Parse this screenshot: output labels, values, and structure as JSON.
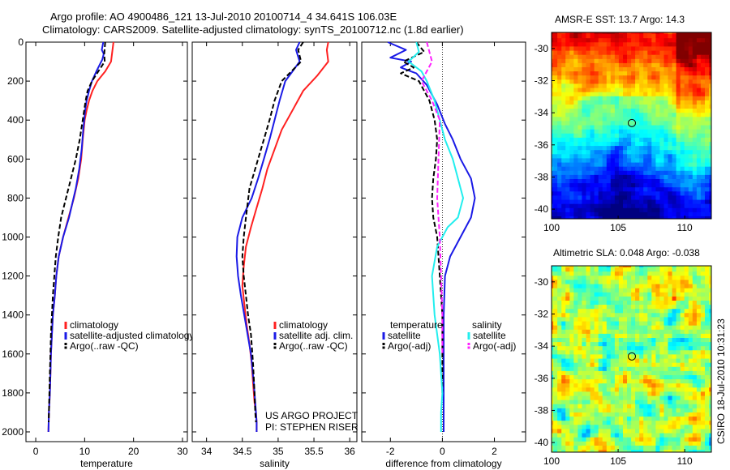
{
  "header": {
    "line1": "Argo profile: AO 4900486_121 13-Jul-2010 20100714_4 34.641S 106.03E",
    "line2": "Climatology: CARS2009. Satellite-adjusted climatology: synTS_20100712.nc (1.8d earlier)"
  },
  "watermark": "CSIRO 18-Jul-2010 10:31:23",
  "colors": {
    "red": "#ff2020",
    "blue": "#1a1ae6",
    "black": "#000000",
    "cyan": "#22eeee",
    "magenta": "#ff22ff"
  },
  "chart_data": [
    {
      "type": "line",
      "name": "temperature-profile",
      "xlabel": "temperature",
      "xlim": [
        -2,
        31
      ],
      "ylim": [
        2050,
        0
      ],
      "xticks": [
        "0",
        "10",
        "20",
        "30"
      ],
      "xtick_values": [
        0,
        10,
        20,
        30
      ],
      "yticks": [
        "0",
        "200",
        "400",
        "600",
        "800",
        "1000",
        "1200",
        "1400",
        "1600",
        "1800",
        "2000"
      ],
      "ytick_values": [
        0,
        200,
        400,
        600,
        800,
        1000,
        1200,
        1400,
        1600,
        1800,
        2000
      ],
      "legend": [
        "climatology",
        "satellite-adjusted climatology",
        "Argo(..raw -QC)"
      ],
      "series": [
        {
          "name": "climatology",
          "color": "red",
          "dash": false,
          "x": [
            15.9,
            15.6,
            15.4,
            14.2,
            12.6,
            11.6,
            10.9,
            10.4,
            10.0,
            9.8,
            9.6,
            9.3,
            8.7,
            7.8,
            6.7,
            5.6,
            4.7,
            4.2,
            3.9,
            3.5,
            3.3,
            3.1,
            3.0,
            2.9,
            2.8,
            2.7,
            2.65,
            2.6
          ],
          "y": [
            0,
            60,
            100,
            150,
            200,
            250,
            300,
            350,
            400,
            450,
            500,
            600,
            700,
            800,
            900,
            1000,
            1100,
            1200,
            1300,
            1400,
            1500,
            1600,
            1700,
            1800,
            1850,
            1900,
            1950,
            2000
          ]
        },
        {
          "name": "satellite-adjusted climatology",
          "color": "blue",
          "dash": false,
          "x": [
            13.8,
            13.5,
            13.9,
            13.6,
            12.4,
            11.5,
            10.9,
            10.4,
            10.1,
            9.9,
            9.7,
            9.4,
            8.9,
            8.2,
            6.8,
            5.6,
            4.7,
            4.2,
            3.9,
            3.5,
            3.3,
            3.1,
            3.0,
            2.9,
            2.8,
            2.7,
            2.65,
            2.6
          ],
          "y": [
            0,
            40,
            60,
            90,
            150,
            200,
            250,
            300,
            350,
            400,
            450,
            550,
            650,
            750,
            900,
            1000,
            1100,
            1200,
            1300,
            1400,
            1500,
            1600,
            1700,
            1800,
            1850,
            1900,
            1950,
            2000
          ]
        },
        {
          "name": "Argo(..raw -QC)",
          "color": "black",
          "dash": true,
          "x": [
            14.2,
            14.1,
            14.0,
            14.1,
            12.8,
            11.5,
            10.6,
            10.2,
            9.9,
            9.6,
            9.3,
            9.0,
            8.2,
            7.2,
            6.2,
            5.2,
            4.6,
            4.1,
            3.8,
            3.5,
            3.3,
            3.1,
            3.0,
            2.9,
            2.8,
            2.75,
            2.7,
            2.65
          ],
          "y": [
            0,
            30,
            60,
            100,
            150,
            200,
            250,
            300,
            350,
            400,
            450,
            500,
            600,
            700,
            800,
            900,
            1000,
            1100,
            1200,
            1300,
            1400,
            1500,
            1600,
            1700,
            1800,
            1850,
            1900,
            1950
          ]
        }
      ]
    },
    {
      "type": "line",
      "name": "salinity-profile",
      "xlabel": "salinity",
      "xlim": [
        33.8,
        36.1
      ],
      "ylim": [
        2050,
        0
      ],
      "xticks": [
        "34",
        "34.5",
        "35",
        "35.5",
        "36"
      ],
      "xtick_values": [
        34,
        34.5,
        35,
        35.5,
        36
      ],
      "legend": [
        "climatology",
        "satellite adj. clim.",
        "Argo(..raw -QC)"
      ],
      "annotation": [
        "US ARGO PROJECT",
        "PI: STEPHEN RISER"
      ],
      "series": [
        {
          "name": "climatology",
          "color": "red",
          "dash": false,
          "x": [
            35.7,
            35.68,
            35.7,
            35.55,
            35.35,
            35.2,
            35.05,
            34.95,
            34.85,
            34.78,
            34.7,
            34.62,
            34.55,
            34.52,
            34.5,
            34.53,
            34.56,
            34.6,
            34.63,
            34.65,
            34.67,
            34.69,
            34.7,
            34.7
          ],
          "y": [
            0,
            40,
            100,
            170,
            250,
            350,
            450,
            550,
            650,
            750,
            850,
            950,
            1050,
            1150,
            1250,
            1350,
            1450,
            1550,
            1650,
            1750,
            1850,
            1900,
            1950,
            2000
          ]
        },
        {
          "name": "satellite adj. clim.",
          "color": "blue",
          "dash": false,
          "x": [
            35.3,
            35.25,
            35.3,
            35.2,
            35.1,
            35.02,
            34.95,
            34.88,
            34.8,
            34.72,
            34.63,
            34.5,
            34.43,
            34.42,
            34.44,
            34.48,
            34.55,
            34.62,
            34.66,
            34.68,
            34.7,
            34.7
          ],
          "y": [
            0,
            40,
            100,
            150,
            200,
            300,
            400,
            500,
            600,
            700,
            800,
            900,
            1000,
            1100,
            1200,
            1300,
            1450,
            1600,
            1750,
            1850,
            1950,
            2000
          ]
        },
        {
          "name": "Argo(..raw -QC)",
          "color": "black",
          "dash": true,
          "x": [
            35.35,
            35.28,
            35.32,
            35.05,
            34.95,
            34.88,
            34.8,
            34.72,
            34.6,
            34.55,
            34.52,
            34.5,
            34.52,
            34.55,
            34.58,
            34.62,
            34.65,
            34.67,
            34.68,
            34.69
          ],
          "y": [
            0,
            40,
            100,
            200,
            300,
            400,
            500,
            600,
            750,
            900,
            1000,
            1100,
            1200,
            1300,
            1400,
            1500,
            1650,
            1800,
            1900,
            1950
          ]
        }
      ]
    },
    {
      "type": "line",
      "name": "difference-profile",
      "xlabel": "difference from climatology",
      "xlim": [
        -3.1,
        3.2
      ],
      "ylim": [
        2050,
        0
      ],
      "xticks": [
        "-2",
        "0",
        "2"
      ],
      "xtick_values": [
        -2,
        0,
        2
      ],
      "zero_line": 0,
      "legend_headers": [
        "temperature",
        "salinity"
      ],
      "legend": [
        "satellite",
        "Argo(-adj)",
        "satellite",
        "Argo(-adj)"
      ],
      "series": [
        {
          "name": "temperature satellite",
          "color": "blue",
          "dash": false,
          "x": [
            -2.1,
            -1.4,
            -2.0,
            -1.2,
            -1.6,
            -1.0,
            -0.6,
            -0.2,
            0.1,
            0.4,
            0.7,
            1.1,
            1.25,
            1.1,
            0.7,
            0.3,
            0.1,
            0.05,
            0.05,
            0.05,
            0.05,
            0.05
          ],
          "y": [
            0,
            40,
            80,
            100,
            130,
            160,
            220,
            320,
            420,
            500,
            600,
            700,
            800,
            900,
            1000,
            1100,
            1200,
            1400,
            1600,
            1800,
            1900,
            2000
          ]
        },
        {
          "name": "temperature Argo(-adj)",
          "color": "black",
          "dash": true,
          "x": [
            -1.0,
            -0.7,
            -1.5,
            -1.1,
            -1.6,
            -0.9,
            -0.5,
            -0.3,
            -0.2,
            -0.25,
            -0.35,
            -0.4,
            -0.35,
            -0.2,
            -0.1,
            0.0,
            0.0,
            0.0
          ],
          "y": [
            0,
            50,
            100,
            130,
            160,
            200,
            300,
            400,
            500,
            600,
            700,
            800,
            900,
            1000,
            1200,
            1400,
            1600,
            1800
          ]
        },
        {
          "name": "salinity satellite",
          "color": "cyan",
          "dash": false,
          "x": [
            -1.0,
            -0.9,
            -1.3,
            -0.8,
            -0.6,
            -0.3,
            -0.1,
            0.1,
            0.4,
            0.8,
            0.6,
            0.2,
            -0.2,
            -0.4,
            -0.3,
            -0.1,
            0.0,
            -0.05,
            -0.05
          ],
          "y": [
            0,
            50,
            100,
            150,
            200,
            300,
            400,
            500,
            600,
            800,
            900,
            950,
            1050,
            1200,
            1400,
            1600,
            1800,
            1900,
            2000
          ]
        },
        {
          "name": "salinity Argo(-adj)",
          "color": "magenta",
          "dash": true,
          "x": [
            -0.6,
            -0.4,
            -0.8,
            -0.4,
            -0.1,
            -0.15,
            -0.2,
            -0.1,
            -0.05,
            0.0,
            0.0
          ],
          "y": [
            0,
            100,
            200,
            300,
            400,
            600,
            800,
            1000,
            1200,
            1400,
            1600
          ]
        }
      ]
    },
    {
      "type": "heatmap",
      "name": "sst-map",
      "title": "AMSR-E SST: 13.7 Argo: 14.3",
      "xticks": [
        "100",
        "105",
        "110"
      ],
      "xtick_values": [
        100,
        105,
        110
      ],
      "yticks": [
        "-30",
        "-32",
        "-34",
        "-36",
        "-38",
        "-40"
      ],
      "ytick_values": [
        -30,
        -32,
        -34,
        -36,
        -38,
        -40
      ],
      "xlim": [
        100,
        112
      ],
      "ylim": [
        -40.6,
        -29
      ],
      "marker": {
        "lon": 106.03,
        "lat": -34.641
      }
    },
    {
      "type": "heatmap",
      "name": "sla-map",
      "title": "Altimetric SLA: 0.048 Argo: -0.038",
      "xticks": [
        "100",
        "105",
        "110"
      ],
      "xtick_values": [
        100,
        105,
        110
      ],
      "yticks": [
        "-30",
        "-32",
        "-34",
        "-36",
        "-38",
        "-40"
      ],
      "ytick_values": [
        -30,
        -32,
        -34,
        -36,
        -38,
        -40
      ],
      "xlim": [
        100,
        112
      ],
      "ylim": [
        -40.6,
        -29
      ],
      "marker": {
        "lon": 106.03,
        "lat": -34.641
      }
    }
  ]
}
